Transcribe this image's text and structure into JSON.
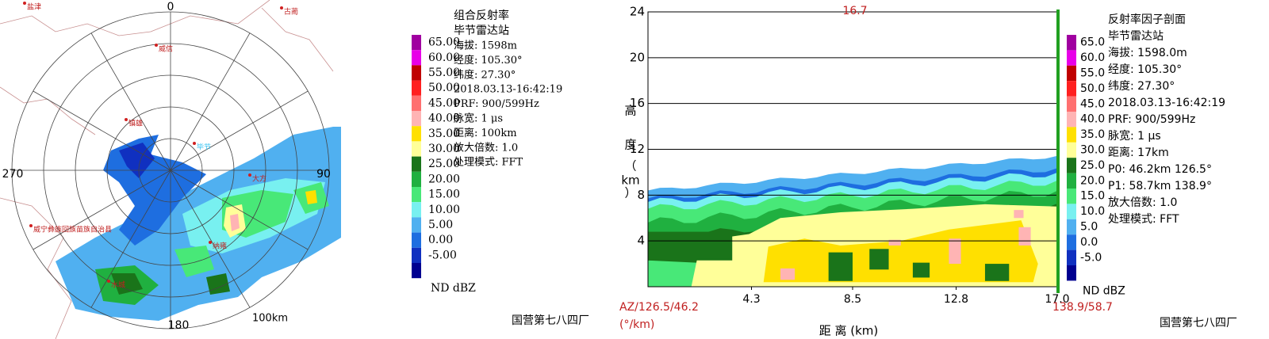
{
  "ppi": {
    "title": "组合反射率",
    "station": "毕节雷达站",
    "info": [
      "海拔: 1598m",
      "经度: 105.30°",
      "纬度: 27.30°",
      "2018.03.13-16:42:19",
      "PRF: 900/599Hz",
      "脉宽: 1 μs",
      "距离: 100km",
      "放大倍数: 1.0",
      "处理模式: FFT"
    ],
    "legend": {
      "labels": [
        "65.00",
        "60.00",
        "55.00",
        "50.00",
        "45.00",
        "40.00",
        "35.00",
        "30.00",
        "25.00",
        "20.00",
        "15.00",
        "10.00",
        "5.00",
        "0.00",
        "-5.00"
      ],
      "colors": [
        "#a000a0",
        "#e800e8",
        "#c00000",
        "#ff2020",
        "#ff7070",
        "#ffb4b4",
        "#ffe000",
        "#ffff99",
        "#1a741a",
        "#20b040",
        "#48e878",
        "#78f0f0",
        "#50b0f0",
        "#1e6ee0",
        "#1030c0",
        "#000090"
      ],
      "nd": "ND  dBZ"
    },
    "azimuth_labels": [
      "0",
      "90",
      "180",
      "270"
    ],
    "range_label": "100km",
    "places": [
      "盐津",
      "古蔺",
      "威信",
      "镇雄",
      "毕节",
      "大方",
      "威宁彝族回族苗族自治县",
      "纳雍",
      "水城"
    ],
    "footer": "国营第七八四厂"
  },
  "section": {
    "title": "反射率因子剖面",
    "station": "毕节雷达站",
    "info": [
      "海拔: 1598.0m",
      "经度: 105.30°",
      "纬度: 27.30°",
      "2018.03.13-16:42:19",
      "PRF: 900/599Hz",
      "脉宽: 1 μs",
      "距离: 17km",
      "P0: 46.2km 126.5°",
      "P1: 58.7km 138.9°",
      "放大倍数: 1.0",
      "处理模式: FFT"
    ],
    "legend": {
      "labels": [
        "65.0",
        "60.0",
        "55.0",
        "50.0",
        "45.0",
        "40.0",
        "35.0",
        "30.0",
        "25.0",
        "20.0",
        "15.0",
        "10.0",
        "5.0",
        "0.0",
        "-5.0"
      ],
      "colors": [
        "#a000a0",
        "#e800e8",
        "#c00000",
        "#ff2020",
        "#ff7070",
        "#ffb4b4",
        "#ffe000",
        "#ffff99",
        "#1a741a",
        "#20b040",
        "#48e878",
        "#78f0f0",
        "#50b0f0",
        "#1e6ee0",
        "#1030c0",
        "#000090"
      ],
      "nd": "ND  dBZ"
    },
    "y_ticks": [
      "4",
      "8",
      "12",
      "16",
      "20",
      "24"
    ],
    "y_label": [
      "高",
      "度",
      "（",
      "km",
      "）"
    ],
    "x_ticks": [
      "4.3",
      "8.5",
      "12.8",
      "17.0"
    ],
    "x_label": "距 离 (km)",
    "top_label": "16.7",
    "start_label": "AZ/126.5/46.2",
    "start_unit": "(°/km)",
    "end_label": "138.9/58.7",
    "footer": "国营第七八四厂"
  }
}
